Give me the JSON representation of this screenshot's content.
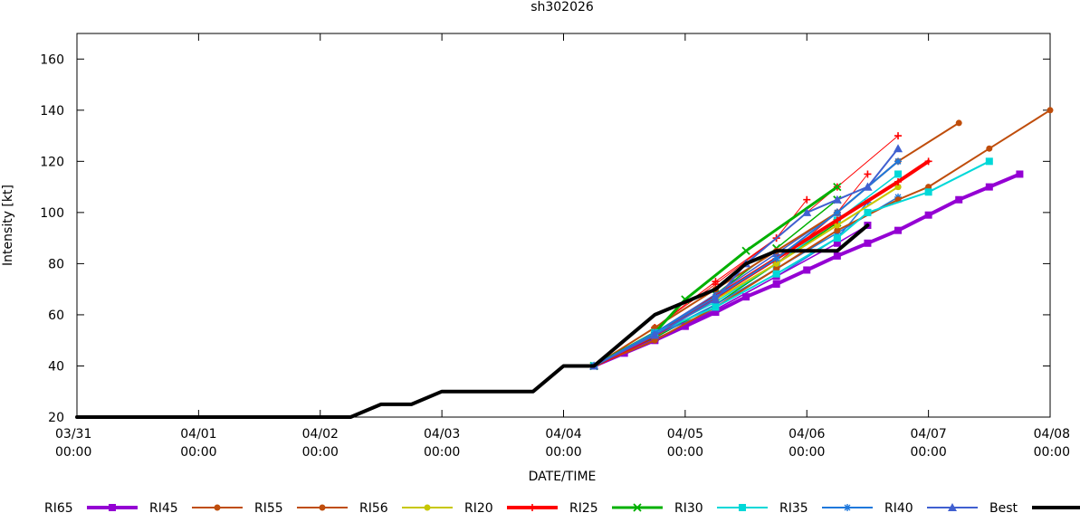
{
  "chart_data": {
    "type": "line",
    "title": "sh302026",
    "xlabel": "DATE/TIME",
    "ylabel": "Intensity [kt]",
    "xlim": [
      0,
      8
    ],
    "ylim": [
      20,
      170
    ],
    "x_unit": "days since 03/31 00:00",
    "x_ticks": [
      {
        "value": 0,
        "date": "03/31",
        "time": "00:00"
      },
      {
        "value": 1,
        "date": "04/01",
        "time": "00:00"
      },
      {
        "value": 2,
        "date": "04/02",
        "time": "00:00"
      },
      {
        "value": 3,
        "date": "04/03",
        "time": "00:00"
      },
      {
        "value": 4,
        "date": "04/04",
        "time": "00:00"
      },
      {
        "value": 5,
        "date": "04/05",
        "time": "00:00"
      },
      {
        "value": 6,
        "date": "04/06",
        "time": "00:00"
      },
      {
        "value": 7,
        "date": "04/07",
        "time": "00:00"
      },
      {
        "value": 8,
        "date": "04/08",
        "time": "00:00"
      }
    ],
    "y_ticks": [
      20,
      40,
      60,
      80,
      100,
      120,
      140,
      160
    ],
    "series": [
      {
        "name": "RI65",
        "color": "#9400d3",
        "marker": "square",
        "width": 4,
        "x": [
          4.25,
          4.5,
          4.75,
          5,
          5.25,
          5.5,
          5.75,
          6,
          6.25,
          6.5,
          6.75,
          7,
          7.25,
          7.5,
          7.75
        ],
        "y": [
          40,
          45,
          50,
          55.5,
          61,
          67,
          72,
          77.5,
          83,
          88,
          93,
          99,
          105,
          110,
          115
        ]
      },
      {
        "name": "RI45",
        "color": "#bf4d0b",
        "marker": "circle",
        "width": 2,
        "x": [
          4.25,
          4.75,
          5.25,
          5.75,
          6.25,
          6.75,
          7.25
        ],
        "y": [
          40,
          55,
          70,
          85,
          100,
          120,
          135
        ]
      },
      {
        "name": "RI55",
        "color": "#bf4d0b",
        "marker": "circle",
        "width": 2,
        "x": [
          4.25,
          4.75,
          5.25,
          5.75,
          6.25,
          6.75,
          7,
          7.5,
          8
        ],
        "y": [
          40,
          50,
          63,
          78,
          93,
          105,
          110,
          125,
          140
        ]
      },
      {
        "name": "RI56",
        "color": "#c7c700",
        "marker": "circle",
        "width": 2,
        "x": [
          4.25,
          4.75,
          5.25,
          5.75,
          6.25,
          6.75
        ],
        "y": [
          40,
          52,
          66,
          80,
          95,
          110
        ]
      },
      {
        "name": "RI20",
        "color": "#ff0000",
        "marker": "plus",
        "width": 4,
        "x": [
          4.25,
          4.75,
          5.25,
          5.75,
          6.25,
          6.75,
          7
        ],
        "y": [
          40,
          52,
          67,
          82,
          97,
          112,
          120
        ]
      },
      {
        "name": "RI25",
        "color": "#00b000",
        "marker": "cross",
        "width": 3,
        "x": [
          4.25,
          4.75,
          5,
          5.5,
          6.25
        ],
        "y": [
          40,
          53,
          66,
          85,
          110
        ]
      },
      {
        "name": "RI30",
        "color": "#00d8d8",
        "marker": "square",
        "width": 2,
        "x": [
          4.25,
          4.75,
          5.25,
          5.75,
          6.25,
          6.5,
          7,
          7.5
        ],
        "y": [
          40,
          53,
          63,
          76,
          90,
          100,
          108,
          120
        ]
      },
      {
        "name": "RI35",
        "color": "#1f78dc",
        "marker": "star",
        "width": 2,
        "x": [
          4.25,
          4.75,
          5.25,
          5.75,
          6.25,
          6.75
        ],
        "y": [
          40,
          53,
          67,
          82,
          100,
          120
        ]
      },
      {
        "name": "RI40",
        "color": "#4060d0",
        "marker": "triangle",
        "width": 2,
        "x": [
          4.25,
          4.75,
          5.25,
          5.5,
          6,
          6.25,
          6.5,
          6.75
        ],
        "y": [
          40,
          52,
          66,
          80,
          100,
          105,
          110,
          125
        ]
      },
      {
        "name": "Best",
        "color": "#000000",
        "marker": "none",
        "width": 4,
        "x": [
          0,
          0.25,
          0.5,
          0.75,
          1,
          1.25,
          1.5,
          1.75,
          2,
          2.25,
          2.5,
          2.75,
          3,
          3.25,
          3.5,
          3.75,
          4,
          4.25,
          4.5,
          4.75,
          5,
          5.25,
          5.5,
          5.75,
          6,
          6.25,
          6.5
        ],
        "y": [
          20,
          20,
          20,
          20,
          20,
          20,
          20,
          20,
          20,
          20,
          25,
          25,
          30,
          30,
          30,
          30,
          40,
          40,
          50,
          60,
          65,
          70,
          80,
          85,
          85,
          85,
          95
        ]
      }
    ],
    "extra_lines": [
      {
        "color": "#ff0000",
        "marker": "plus",
        "width": 1,
        "x": [
          4.25,
          4.75,
          5.25,
          5.75,
          6
        ],
        "y": [
          40,
          55,
          72,
          90,
          105
        ]
      },
      {
        "color": "#ff0000",
        "marker": "plus",
        "width": 1,
        "x": [
          4.25,
          4.75,
          5.25,
          5.75,
          6.25,
          6.75
        ],
        "y": [
          40,
          55,
          73,
          90,
          110,
          130
        ]
      },
      {
        "color": "#ff0000",
        "marker": "plus",
        "width": 1,
        "x": [
          4.25,
          4.75,
          5.25,
          5.75,
          6.25,
          6.5
        ],
        "y": [
          40,
          53,
          66,
          80,
          100,
          115
        ]
      },
      {
        "color": "#00b000",
        "marker": "cross",
        "width": 1.5,
        "x": [
          4.25,
          4.75,
          5.25,
          5.75,
          6.25
        ],
        "y": [
          40,
          52,
          68,
          86,
          105
        ]
      },
      {
        "color": "#00b000",
        "marker": "cross",
        "width": 1.5,
        "x": [
          4.25,
          4.75,
          5.25,
          5.75,
          6.25
        ],
        "y": [
          40,
          51,
          64,
          80,
          96
        ]
      },
      {
        "color": "#00d8d8",
        "marker": "square",
        "width": 1.5,
        "x": [
          4.25,
          4.75,
          5.25,
          5.75,
          6.25,
          6.75
        ],
        "y": [
          40,
          53,
          65,
          80,
          97,
          115
        ]
      },
      {
        "color": "#1f78dc",
        "marker": "star",
        "width": 1.5,
        "x": [
          4.25,
          4.75,
          5.25,
          5.75,
          6.25,
          6.5
        ],
        "y": [
          40,
          52,
          62,
          75,
          90,
          104
        ]
      },
      {
        "color": "#1f78dc",
        "marker": "star",
        "width": 1.5,
        "x": [
          4.25,
          4.75,
          5.25,
          5.75,
          6.25,
          6.75
        ],
        "y": [
          40,
          52,
          64,
          78,
          92,
          106
        ]
      },
      {
        "color": "#4060d0",
        "marker": "triangle",
        "width": 1.5,
        "x": [
          4.25,
          4.75,
          5.25,
          5.75,
          6.25,
          6.5
        ],
        "y": [
          40,
          53,
          68,
          84,
          100,
          110
        ]
      },
      {
        "color": "#bf4d0b",
        "marker": "circle",
        "width": 1.5,
        "x": [
          4.25,
          4.75,
          5.25,
          5.75,
          6.25,
          6.75
        ],
        "y": [
          40,
          53,
          66,
          80,
          95,
          110
        ]
      },
      {
        "color": "#9400d3",
        "marker": "square",
        "width": 1.5,
        "x": [
          4.25,
          4.75,
          5.25,
          5.75,
          6.25,
          6.5
        ],
        "y": [
          40,
          50,
          62,
          75,
          88,
          95
        ]
      }
    ]
  }
}
